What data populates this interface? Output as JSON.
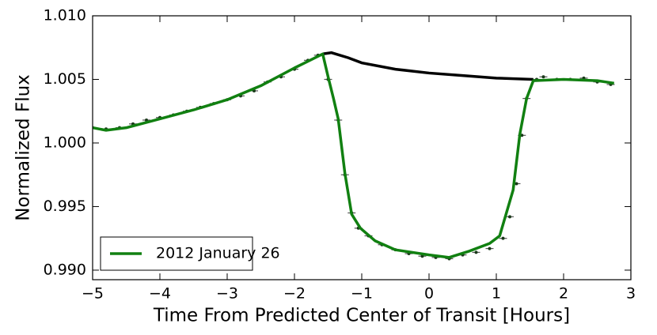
{
  "chart_data": {
    "type": "line",
    "xlabel": "Time From Predicted Center of Transit [Hours]",
    "ylabel": "Normalized Flux",
    "xlim": [
      -5,
      3
    ],
    "ylim": [
      0.98925,
      1.01
    ],
    "xticks": [
      {
        "value": -5,
        "label": "−5"
      },
      {
        "value": -4,
        "label": "−4"
      },
      {
        "value": -3,
        "label": "−3"
      },
      {
        "value": -2,
        "label": "−2"
      },
      {
        "value": -1,
        "label": "−1"
      },
      0,
      1,
      2,
      3
    ],
    "yticks": [
      {
        "value": 0.99,
        "label": "0.990"
      },
      {
        "value": 0.995,
        "label": "0.995"
      },
      {
        "value": 1.0,
        "label": "1.000"
      },
      {
        "value": 1.005,
        "label": "1.005"
      },
      {
        "value": 1.01,
        "label": "1.010"
      }
    ],
    "legend": "lower left",
    "series": [
      {
        "name": "2012 January 26",
        "color": "#118011",
        "x": [
          -5,
          -4.8,
          -4.5,
          -4,
          -3.5,
          -3,
          -2.5,
          -2,
          -1.58,
          -1.5,
          -1.42,
          -1.35,
          -1.25,
          -1.15,
          -1.02,
          -0.8,
          -0.5,
          0,
          0.3,
          0.6,
          0.9,
          1.05,
          1.15,
          1.25,
          1.35,
          1.45,
          1.55,
          2,
          2.5,
          2.75
        ],
        "values": [
          1.0012,
          1.001,
          1.0012,
          1.0019,
          1.0026,
          1.0034,
          1.0045,
          1.0059,
          1.007,
          1.0052,
          1.0035,
          1.0019,
          0.9976,
          0.9944,
          0.9933,
          0.9923,
          0.9916,
          0.9912,
          0.991,
          0.9915,
          0.9921,
          0.9927,
          0.9945,
          0.9963,
          1.0007,
          1.0035,
          1.0049,
          1.005,
          1.0049,
          1.0047
        ]
      }
    ],
    "model_no_transit": {
      "color": "#000000",
      "x": [
        -1.58,
        -1.45,
        -1.2,
        -1,
        -0.5,
        0,
        0.5,
        1,
        1.55
      ],
      "values": [
        1.007,
        1.0071,
        1.0067,
        1.0063,
        1.0058,
        1.0055,
        1.0053,
        1.0051,
        1.005
      ]
    },
    "data_points": {
      "color": "#1a3a1a",
      "x": [
        -5,
        -4.8,
        -4.6,
        -4.4,
        -4.2,
        -4,
        -3.8,
        -3.6,
        -3.4,
        -3.2,
        -3,
        -2.8,
        -2.6,
        -2.4,
        -2.2,
        -2,
        -1.8,
        -1.65,
        -1.5,
        -1.35,
        -1.25,
        -1.15,
        -1.05,
        -0.9,
        -0.7,
        -0.5,
        -0.3,
        -0.1,
        0.1,
        0.3,
        0.5,
        0.7,
        0.9,
        1.1,
        1.2,
        1.3,
        1.38,
        1.45,
        1.6,
        1.7,
        1.9,
        2.1,
        2.3,
        2.5,
        2.7
      ],
      "values": [
        1.0012,
        1.0011,
        1.0012,
        1.0015,
        1.0018,
        1.002,
        1.0022,
        1.0025,
        1.0028,
        1.0031,
        1.0034,
        1.0037,
        1.0041,
        1.0048,
        1.0052,
        1.0058,
        1.0065,
        1.0069,
        1.005,
        1.0018,
        0.9975,
        0.9945,
        0.9933,
        0.9927,
        0.992,
        0.9916,
        0.9913,
        0.9911,
        0.991,
        0.9909,
        0.9912,
        0.9914,
        0.9917,
        0.9925,
        0.9942,
        0.9968,
        1.0006,
        1.0035,
        1.005,
        1.0052,
        1.005,
        1.005,
        1.0051,
        1.0048,
        1.0046
      ]
    }
  }
}
